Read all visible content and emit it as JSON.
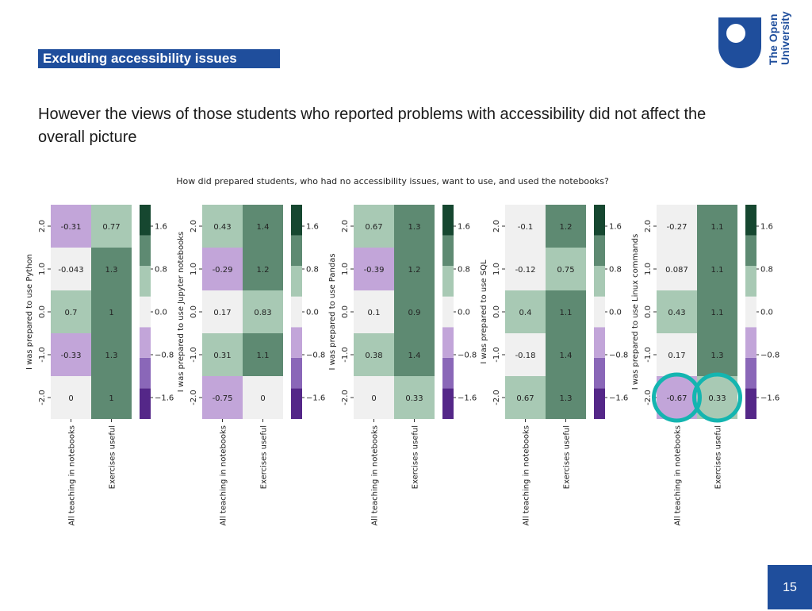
{
  "section_tag": "Excluding accessibility issues",
  "logo": {
    "line1": "The Open",
    "line2": "University",
    "color": "#1f4e9c"
  },
  "heading": "However the views of those students who reported problems with accessibility did not affect the overall picture",
  "page_number": "15",
  "chart_data": {
    "type": "heatmap",
    "title": "How did prepared students, who had no accessibility issues, want to use, and used the notebooks?",
    "columns": [
      "All teaching in notebooks",
      "Exercises useful"
    ],
    "row_ticks": [
      "2.0",
      "1.0",
      "0.0",
      "-1.0",
      "-2.0"
    ],
    "colorbar": {
      "ticks": [
        "1.6",
        "0.8",
        "0.0",
        "−0.8",
        "−1.6"
      ],
      "range": [
        -2,
        2
      ],
      "colors": [
        "#542788",
        "#8a67b8",
        "#c2a5d9",
        "#f0f0f0",
        "#a8c9b4",
        "#5e8a72",
        "#164730"
      ]
    },
    "highlight_color": "#14b5b0",
    "panels": [
      {
        "ylabel": "I was prepared to use Python",
        "values": [
          [
            -0.31,
            0.77
          ],
          [
            -0.043,
            1.3
          ],
          [
            0.7,
            1
          ],
          [
            -0.33,
            1.3
          ],
          [
            0,
            1
          ]
        ],
        "labels": [
          [
            "-0.31",
            "0.77"
          ],
          [
            "-0.043",
            "1.3"
          ],
          [
            "0.7",
            "1"
          ],
          [
            "-0.33",
            "1.3"
          ],
          [
            "0",
            "1"
          ]
        ]
      },
      {
        "ylabel": "I was prepared to use Jupyter notebooks",
        "values": [
          [
            0.43,
            1.4
          ],
          [
            -0.29,
            1.2
          ],
          [
            0.17,
            0.83
          ],
          [
            0.31,
            1.1
          ],
          [
            -0.75,
            0
          ]
        ],
        "labels": [
          [
            "0.43",
            "1.4"
          ],
          [
            "-0.29",
            "1.2"
          ],
          [
            "0.17",
            "0.83"
          ],
          [
            "0.31",
            "1.1"
          ],
          [
            "-0.75",
            "0"
          ]
        ]
      },
      {
        "ylabel": "I was prepared to use Pandas",
        "values": [
          [
            0.67,
            1.3
          ],
          [
            -0.39,
            1.2
          ],
          [
            0.1,
            0.9
          ],
          [
            0.38,
            1.4
          ],
          [
            0,
            0.33
          ]
        ],
        "labels": [
          [
            "0.67",
            "1.3"
          ],
          [
            "-0.39",
            "1.2"
          ],
          [
            "0.1",
            "0.9"
          ],
          [
            "0.38",
            "1.4"
          ],
          [
            "0",
            "0.33"
          ]
        ]
      },
      {
        "ylabel": "I was prepared to use SQL",
        "values": [
          [
            -0.1,
            1.2
          ],
          [
            -0.12,
            0.75
          ],
          [
            0.4,
            1.1
          ],
          [
            -0.18,
            1.4
          ],
          [
            0.67,
            1.3
          ]
        ],
        "labels": [
          [
            "-0.1",
            "1.2"
          ],
          [
            "-0.12",
            "0.75"
          ],
          [
            "0.4",
            "1.1"
          ],
          [
            "-0.18",
            "1.4"
          ],
          [
            "0.67",
            "1.3"
          ]
        ]
      },
      {
        "ylabel": "I was prepared to use Linux commands",
        "values": [
          [
            -0.27,
            1.1
          ],
          [
            0.087,
            1.1
          ],
          [
            0.43,
            1.1
          ],
          [
            0.17,
            1.3
          ],
          [
            -0.67,
            0.33
          ]
        ],
        "labels": [
          [
            "-0.27",
            "1.1"
          ],
          [
            "0.087",
            "1.1"
          ],
          [
            "0.43",
            "1.1"
          ],
          [
            "0.17",
            "1.3"
          ],
          [
            "-0.67",
            "0.33"
          ]
        ],
        "highlights": [
          [
            4,
            0
          ],
          [
            4,
            1
          ]
        ]
      }
    ]
  }
}
